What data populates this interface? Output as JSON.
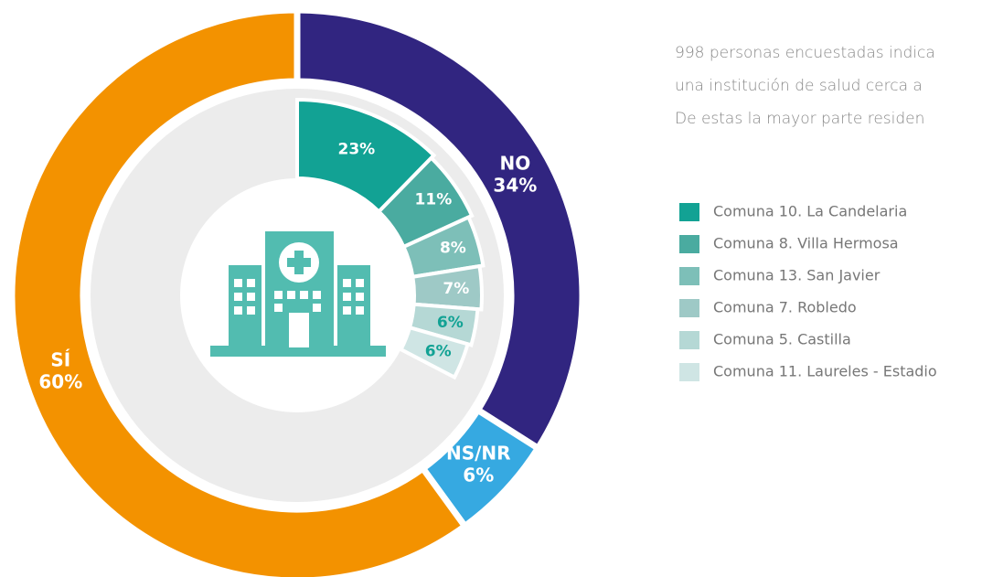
{
  "chart_data": [
    {
      "type": "donut",
      "categories": [
        "NO",
        "NS/NR",
        "SÍ"
      ],
      "values": [
        34,
        6,
        60
      ],
      "value_labels": [
        "34%",
        "6%",
        "60%"
      ],
      "colors": [
        "#312580",
        "#36a9e1",
        "#f39200"
      ]
    },
    {
      "type": "donut-inner",
      "categories": [
        "Comuna 10. La Candelaria",
        "Comuna 8. Villa Hermosa",
        "Comuna 13. San Javier",
        "Comuna 7. Robledo",
        "Comuna 5. Castilla",
        "Comuna 11. Laureles - Estadio"
      ],
      "values": [
        23,
        11,
        8,
        7,
        6,
        6
      ],
      "value_labels": [
        "23%",
        "11%",
        "8%",
        "7%",
        "6%",
        "6%"
      ],
      "colors": [
        "#12a294",
        "#4aaba0",
        "#7dbfb8",
        "#9ec9c6",
        "#b5d8d5",
        "#cfe5e4"
      ]
    }
  ],
  "text": {
    "lines": [
      "998 personas encuestadas indica",
      "una institución de salud cerca a",
      "De estas la mayor parte residen"
    ]
  }
}
